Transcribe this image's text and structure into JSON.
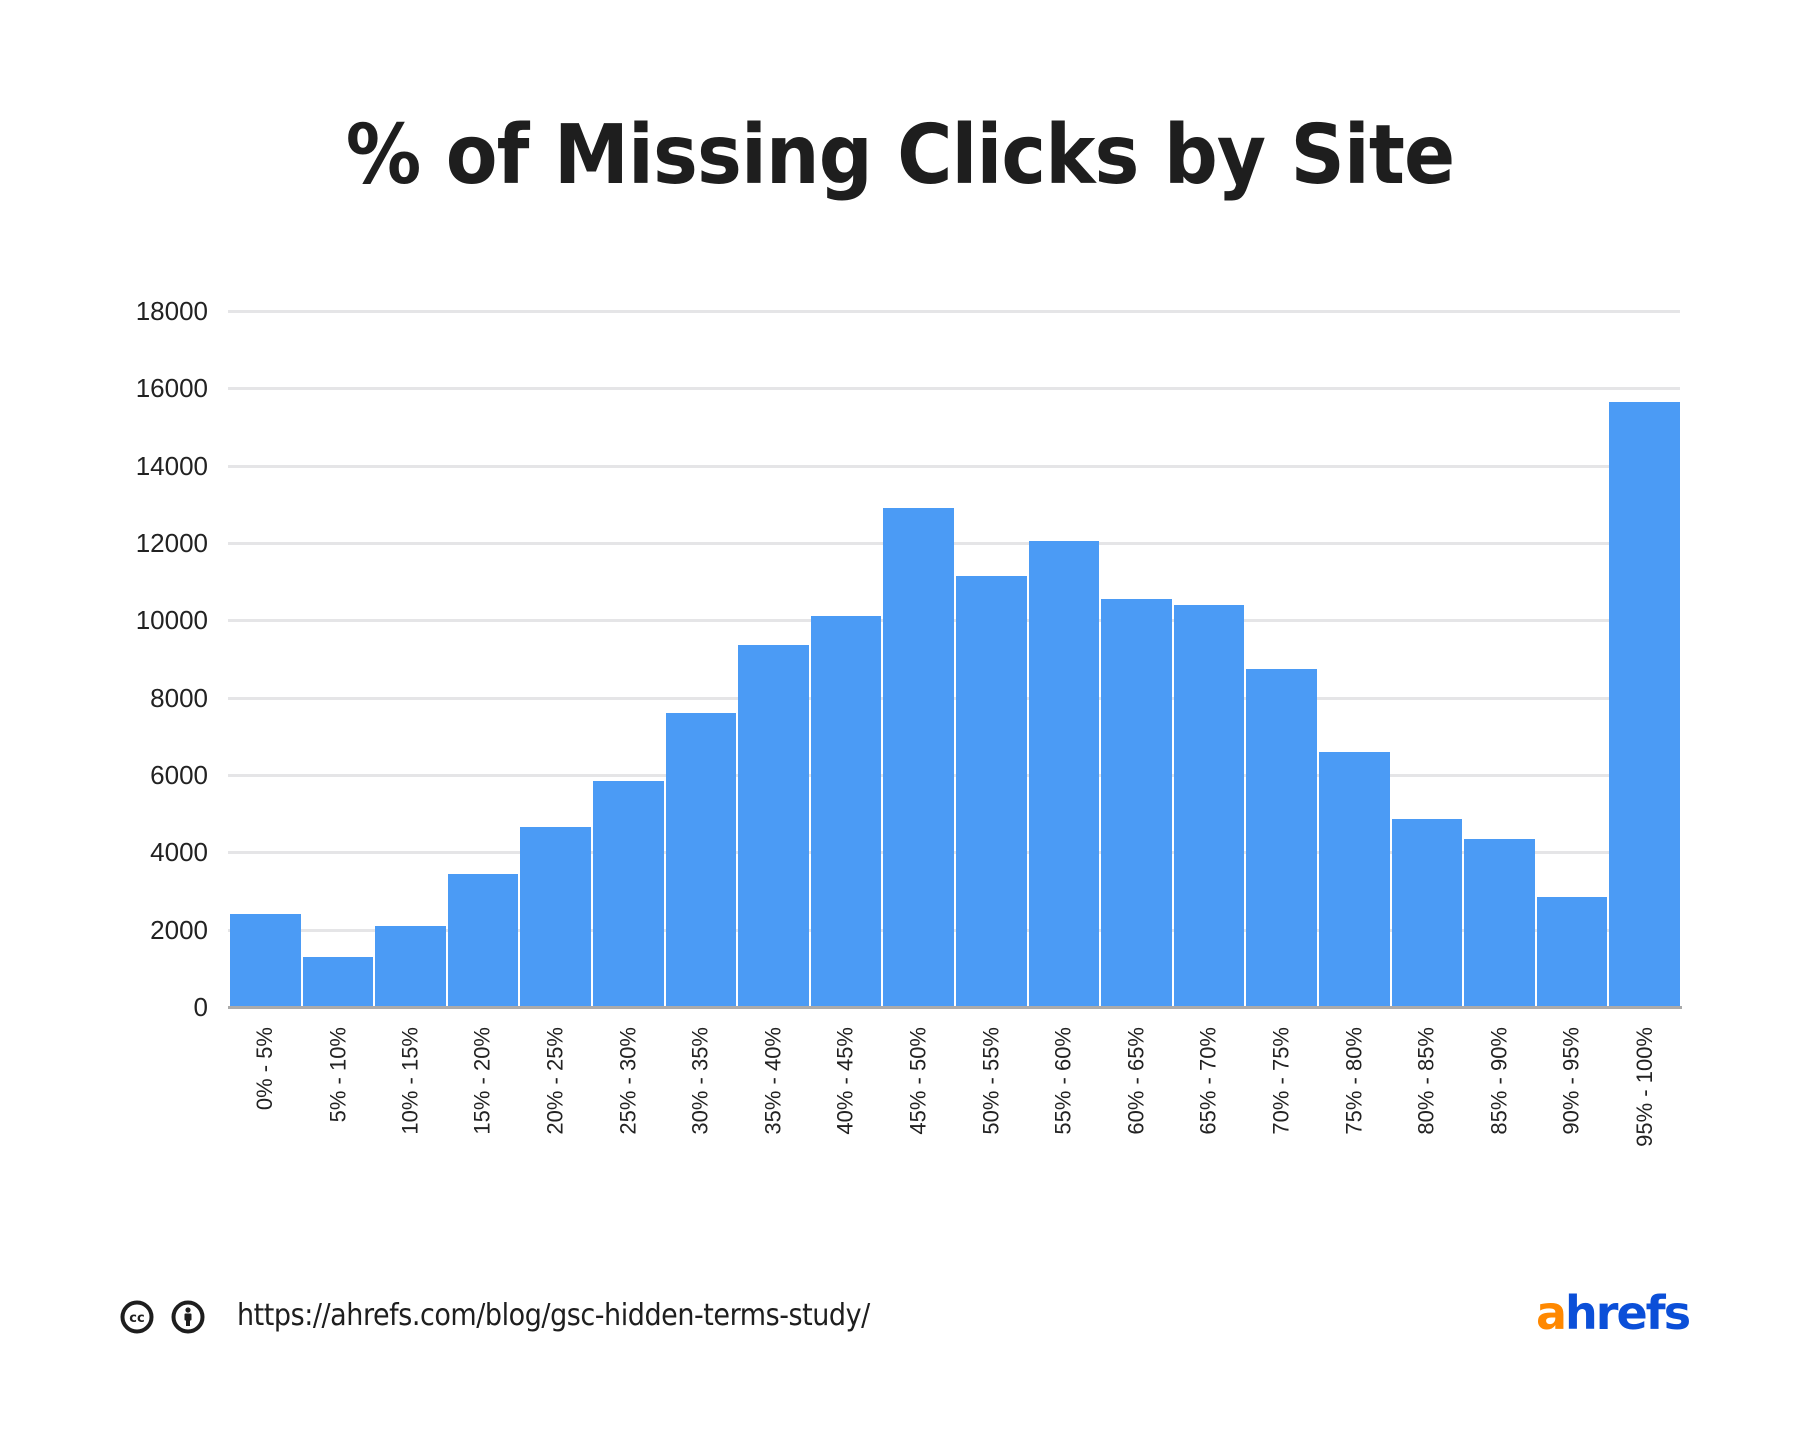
{
  "title": "% of Missing Clicks by Site",
  "chart_data": {
    "type": "bar",
    "title": "% of Missing Clicks by Site",
    "xlabel": "",
    "ylabel": "",
    "ylim": [
      0,
      18000
    ],
    "yticks": [
      0,
      2000,
      4000,
      6000,
      8000,
      10000,
      12000,
      14000,
      16000,
      18000
    ],
    "grid": true,
    "legend": null,
    "categories": [
      "0% - 5%",
      "5% - 10%",
      "10% - 15%",
      "15% - 20%",
      "20% - 25%",
      "25% - 30%",
      "30% - 35%",
      "35% - 40%",
      "40% - 45%",
      "45% - 50%",
      "50% - 55%",
      "55% - 60%",
      "60% - 65%",
      "65% - 70%",
      "70% - 75%",
      "75% - 80%",
      "80% - 85%",
      "85% - 90%",
      "90% - 95%",
      "95% - 100%"
    ],
    "values": [
      2400,
      1300,
      2100,
      3450,
      4650,
      5850,
      7600,
      9350,
      10100,
      12900,
      11150,
      12050,
      10550,
      10400,
      8750,
      6600,
      4850,
      4350,
      2850,
      15650
    ],
    "bar_color": "#4b9bf5"
  },
  "footer": {
    "license_icons": [
      "creative-commons-icon",
      "attribution-icon"
    ],
    "url": "https://ahrefs.com/blog/gsc-hidden-terms-study/"
  },
  "brand": {
    "logo_prefix": "a",
    "logo_rest": "hrefs",
    "prefix_color": "#ff8800",
    "rest_color": "#0b4fd8"
  }
}
